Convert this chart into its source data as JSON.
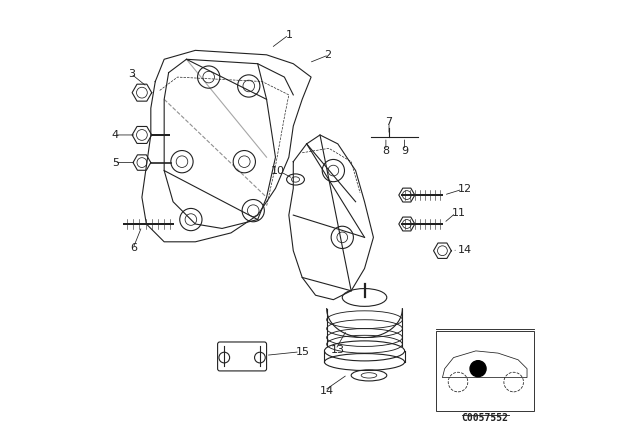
{
  "bg_color": "#ffffff",
  "fig_width": 6.4,
  "fig_height": 4.48,
  "dpi": 100,
  "line_color": "#222222",
  "diagram_code": "C0057552"
}
